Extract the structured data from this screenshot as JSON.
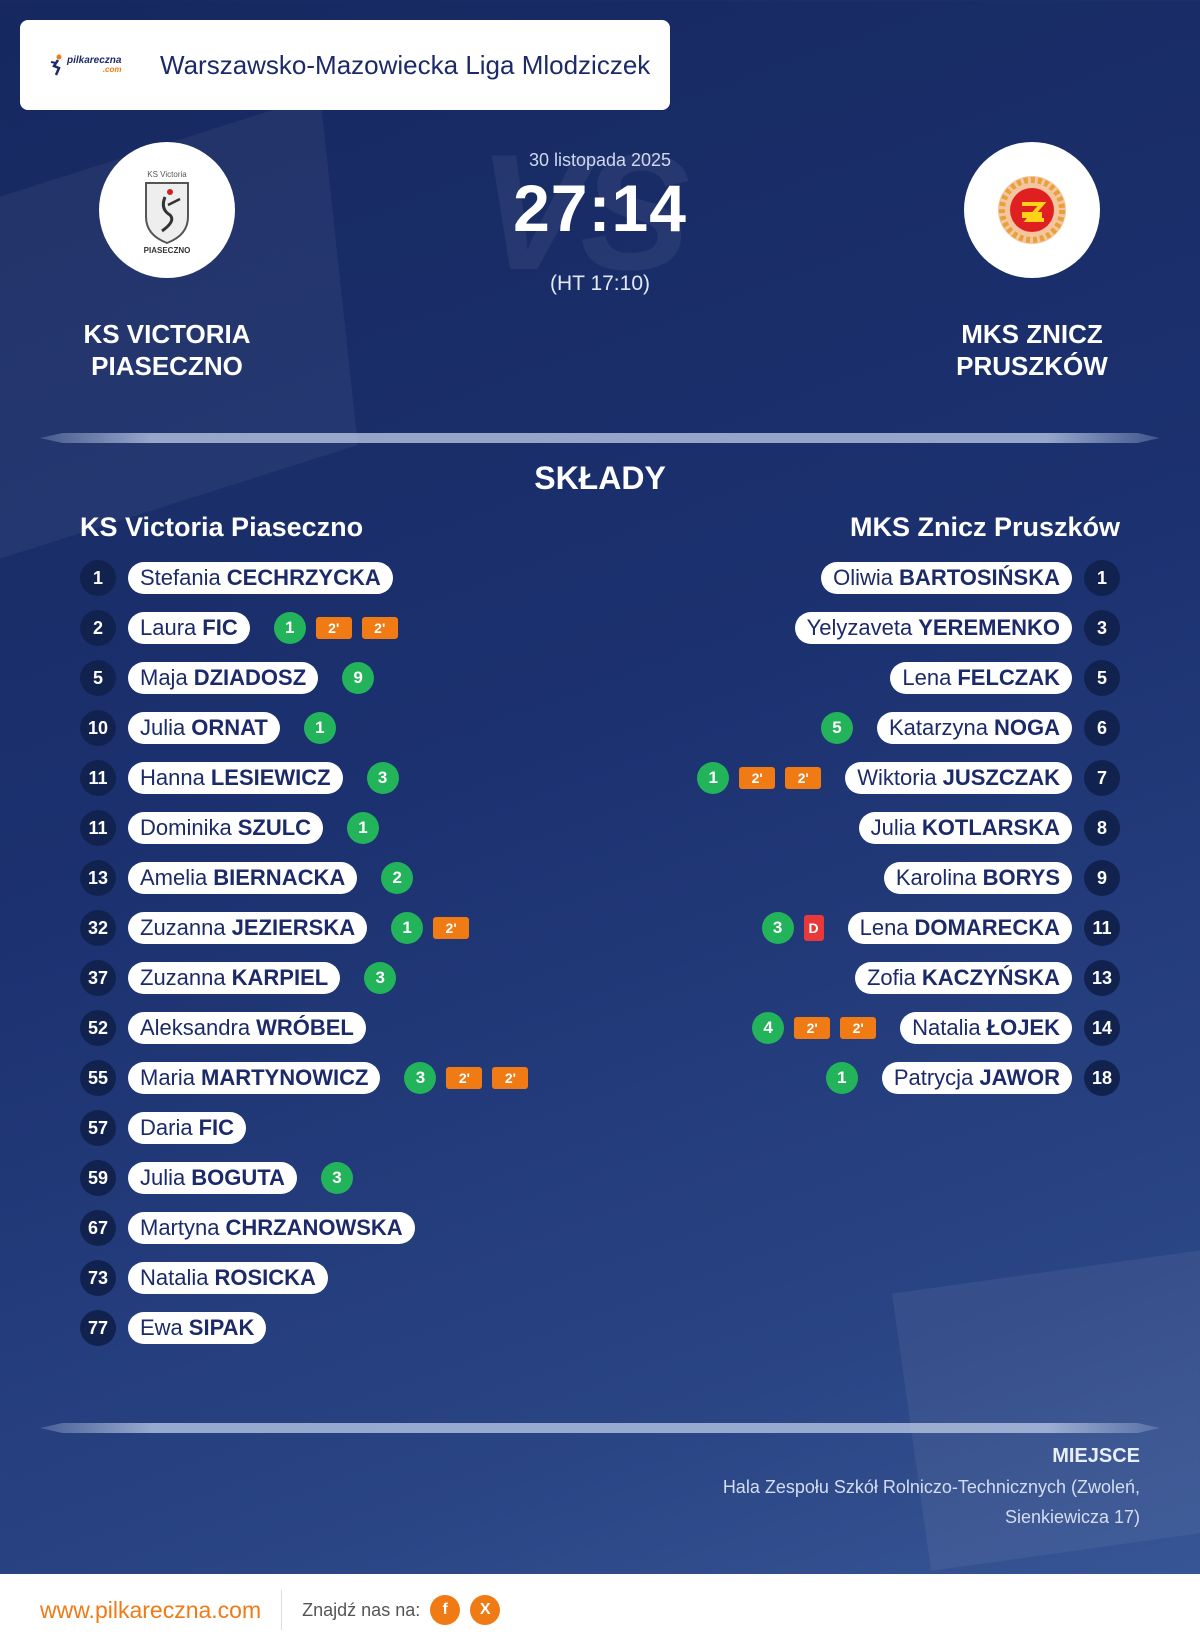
{
  "header": {
    "brand_text": "pilkareczna",
    "brand_sub": ".com",
    "league": "Warszawsko-Mazowiecka Liga Mlodziczek"
  },
  "match": {
    "date": "30 listopada 2025",
    "score": "27:14",
    "halftime": "(HT 17:10)",
    "watermark": "VS",
    "home_name_line1": "KS VICTORIA",
    "home_name_line2": "PIASECZNO",
    "away_name_line1": "MKS ZNICZ",
    "away_name_line2": "PRUSZKÓW",
    "home_logo_text_top": "KS Victoria",
    "home_logo_text_bottom": "PIASECZNO"
  },
  "lineups": {
    "title": "SKŁADY",
    "home_title": "KS Victoria Piaseczno",
    "away_title": "MKS Znicz Pruszków",
    "home": [
      {
        "number": "1",
        "first": "Stefania",
        "last": "CECHRZYCKA",
        "goals": null,
        "suspensions": 0,
        "red": false
      },
      {
        "number": "2",
        "first": "Laura",
        "last": "FIC",
        "goals": "1",
        "suspensions": 2,
        "red": false
      },
      {
        "number": "5",
        "first": "Maja",
        "last": "DZIADOSZ",
        "goals": "9",
        "suspensions": 0,
        "red": false
      },
      {
        "number": "10",
        "first": "Julia",
        "last": "ORNAT",
        "goals": "1",
        "suspensions": 0,
        "red": false
      },
      {
        "number": "11",
        "first": "Hanna",
        "last": "LESIEWICZ",
        "goals": "3",
        "suspensions": 0,
        "red": false
      },
      {
        "number": "11",
        "first": "Dominika",
        "last": "SZULC",
        "goals": "1",
        "suspensions": 0,
        "red": false
      },
      {
        "number": "13",
        "first": "Amelia",
        "last": "BIERNACKA",
        "goals": "2",
        "suspensions": 0,
        "red": false
      },
      {
        "number": "32",
        "first": "Zuzanna",
        "last": "JEZIERSKA",
        "goals": "1",
        "suspensions": 1,
        "red": false
      },
      {
        "number": "37",
        "first": "Zuzanna",
        "last": "KARPIEL",
        "goals": "3",
        "suspensions": 0,
        "red": false
      },
      {
        "number": "52",
        "first": "Aleksandra",
        "last": "WRÓBEL",
        "goals": null,
        "suspensions": 0,
        "red": false
      },
      {
        "number": "55",
        "first": "Maria",
        "last": "MARTYNOWICZ",
        "goals": "3",
        "suspensions": 2,
        "red": false
      },
      {
        "number": "57",
        "first": "Daria",
        "last": "FIC",
        "goals": null,
        "suspensions": 0,
        "red": false
      },
      {
        "number": "59",
        "first": "Julia",
        "last": "BOGUTA",
        "goals": "3",
        "suspensions": 0,
        "red": false
      },
      {
        "number": "67",
        "first": "Martyna",
        "last": "CHRZANOWSKA",
        "goals": null,
        "suspensions": 0,
        "red": false
      },
      {
        "number": "73",
        "first": "Natalia",
        "last": "ROSICKA",
        "goals": null,
        "suspensions": 0,
        "red": false
      },
      {
        "number": "77",
        "first": "Ewa",
        "last": "SIPAK",
        "goals": null,
        "suspensions": 0,
        "red": false
      }
    ],
    "away": [
      {
        "number": "1",
        "first": "Oliwia",
        "last": "BARTOSIŃSKA",
        "goals": null,
        "suspensions": 0,
        "red": false
      },
      {
        "number": "3",
        "first": "Yelyzaveta",
        "last": "YEREMENKO",
        "goals": null,
        "suspensions": 0,
        "red": false
      },
      {
        "number": "5",
        "first": "Lena",
        "last": "FELCZAK",
        "goals": null,
        "suspensions": 0,
        "red": false
      },
      {
        "number": "6",
        "first": "Katarzyna",
        "last": "NOGA",
        "goals": "5",
        "suspensions": 0,
        "red": false
      },
      {
        "number": "7",
        "first": "Wiktoria",
        "last": "JUSZCZAK",
        "goals": "1",
        "suspensions": 2,
        "red": false
      },
      {
        "number": "8",
        "first": "Julia",
        "last": "KOTLARSKA",
        "goals": null,
        "suspensions": 0,
        "red": false
      },
      {
        "number": "9",
        "first": "Karolina",
        "last": "BORYS",
        "goals": null,
        "suspensions": 0,
        "red": false
      },
      {
        "number": "11",
        "first": "Lena",
        "last": "DOMARECKA",
        "goals": "3",
        "suspensions": 0,
        "red": true
      },
      {
        "number": "13",
        "first": "Zofia",
        "last": "KACZYŃSKA",
        "goals": null,
        "suspensions": 0,
        "red": false
      },
      {
        "number": "14",
        "first": "Natalia",
        "last": "ŁOJEK",
        "goals": "4",
        "suspensions": 2,
        "red": false
      },
      {
        "number": "18",
        "first": "Patrycja",
        "last": "JAWOR",
        "goals": "1",
        "suspensions": 0,
        "red": false
      }
    ],
    "suspension_label": "2'",
    "red_label": "D"
  },
  "venue": {
    "label": "MIEJSCE",
    "text": "Hala Zespołu Szkół Rolniczo-Technicznych (Zwoleń, Sienkiewicza 17)"
  },
  "footer": {
    "site": "www.pilkareczna.com",
    "find_us": "Znajdź nas na:",
    "facebook": "f",
    "x": "X"
  },
  "colors": {
    "accent": "#f07a14",
    "goal": "#23b35a",
    "red_card": "#e8383a",
    "navy": "#1c2a6a"
  }
}
